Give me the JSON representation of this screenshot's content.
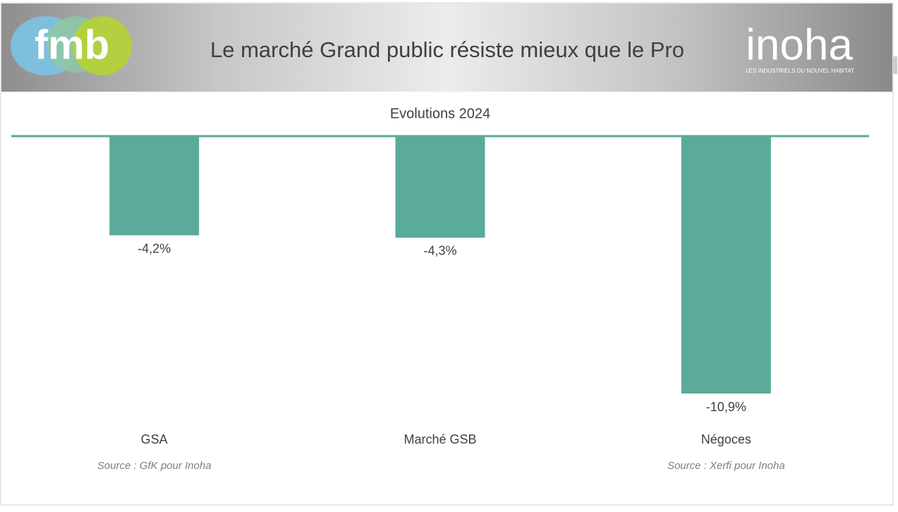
{
  "logos": {
    "left": "fmb",
    "right": "inoha",
    "right_tagline": "LES INDUSTRIELS DU NOUVEL HABITAT"
  },
  "chart_data": {
    "type": "bar",
    "title": "Le marché Grand public résiste mieux que le Pro",
    "subtitle": "Evolutions 2024",
    "categories": [
      "GSA",
      "Marché GSB",
      "Négoces"
    ],
    "values": [
      -4.2,
      -4.3,
      -10.9
    ],
    "value_labels": [
      "-4,2%",
      "-4,3%",
      "-10,9%"
    ],
    "sources": [
      "Source : GfK pour Inoha",
      null,
      "Source : Xerfi pour Inoha"
    ],
    "color": "#5aab9a"
  }
}
